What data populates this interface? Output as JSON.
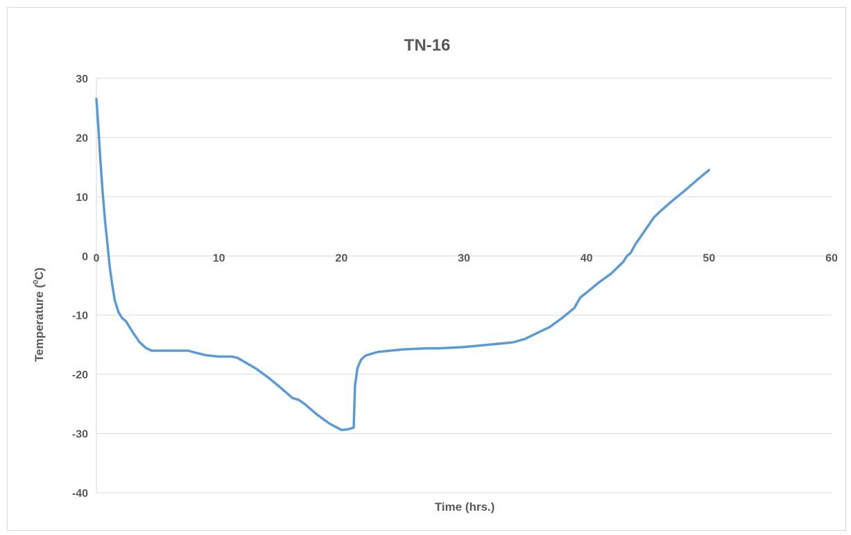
{
  "chart_data": {
    "type": "line",
    "title": "TN-16",
    "xlabel": "Time (hrs.)",
    "ylabel_main": "Temperature (",
    "ylabel_sup": "0",
    "ylabel_tail": "C)",
    "xlim": [
      0,
      60
    ],
    "ylim": [
      -40,
      30
    ],
    "x_ticks": [
      0,
      10,
      20,
      30,
      40,
      50,
      60
    ],
    "y_ticks": [
      30,
      20,
      10,
      0,
      -10,
      -20,
      -30,
      -40
    ],
    "x_tick_labels": [
      "0",
      "10",
      "20",
      "30",
      "40",
      "50",
      "60"
    ],
    "y_tick_labels": [
      "30",
      "20",
      "10",
      "0",
      "-10",
      "-20",
      "-30",
      "-40"
    ],
    "grid": true,
    "legend": "none",
    "series": [
      {
        "color": "#5b9bd5",
        "x": [
          0,
          0.15,
          0.3,
          0.5,
          0.7,
          0.9,
          1.1,
          1.3,
          1.5,
          1.8,
          2.1,
          2.4,
          2.7,
          3.0,
          3.5,
          4.0,
          4.5,
          5.0,
          5.5,
          6.0,
          6.5,
          7.0,
          7.5,
          8.0,
          9.0,
          10.0,
          11.0,
          11.5,
          12.0,
          13.0,
          14.0,
          15.0,
          16.0,
          16.5,
          17.0,
          18.0,
          19.0,
          20.0,
          20.5,
          21.0,
          21.1,
          21.3,
          21.6,
          22.0,
          23.0,
          24.0,
          25.0,
          26.0,
          27.0,
          28.0,
          29.0,
          30.0,
          31.0,
          32.0,
          33.0,
          34.0,
          35.0,
          36.0,
          37.0,
          38.0,
          39.0,
          39.5,
          40.0,
          41.0,
          42.0,
          43.0,
          43.3,
          43.6,
          44.0,
          44.5,
          45.0,
          45.5,
          46.0,
          47.0,
          48.0,
          49.0,
          50.0
        ],
        "y": [
          26.5,
          22,
          17,
          11,
          6,
          2,
          -2,
          -5,
          -7.5,
          -9.5,
          -10.5,
          -11,
          -12,
          -13,
          -14.5,
          -15.5,
          -16,
          -16,
          -16,
          -16,
          -16,
          -16,
          -16,
          -16.3,
          -16.8,
          -17,
          -17,
          -17.2,
          -17.8,
          -19,
          -20.5,
          -22.2,
          -24,
          -24.3,
          -25,
          -26.8,
          -28.3,
          -29.4,
          -29.3,
          -29,
          -22,
          -19,
          -17.5,
          -16.8,
          -16.2,
          -16,
          -15.8,
          -15.7,
          -15.6,
          -15.6,
          -15.5,
          -15.4,
          -15.2,
          -15,
          -14.8,
          -14.6,
          -14,
          -13,
          -12,
          -10.5,
          -8.8,
          -7,
          -6.2,
          -4.5,
          -3,
          -1,
          0,
          0.5,
          2,
          3.5,
          5,
          6.5,
          7.5,
          9.3,
          11,
          12.8,
          14.5
        ]
      }
    ]
  }
}
